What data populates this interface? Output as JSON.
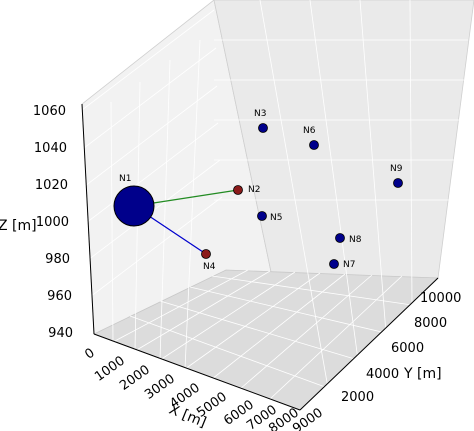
{
  "chart_data": {
    "type": "scatter3d",
    "xlabel": "X [m]",
    "ylabel": "Y [m]",
    "zlabel": "Z [m]",
    "xlim": [
      0,
      9000
    ],
    "ylim": [
      0,
      10000
    ],
    "zlim": [
      940,
      1060
    ],
    "x_ticks": [
      "0",
      "1000",
      "2000",
      "3000",
      "4000",
      "5000",
      "6000",
      "7000",
      "8000",
      "9000"
    ],
    "y_ticks": [
      "2000",
      "4000",
      "6000",
      "8000",
      "10000"
    ],
    "z_ticks": [
      "940",
      "960",
      "980",
      "1000",
      "1020",
      "1040",
      "1060"
    ],
    "grid": true,
    "nodes": [
      {
        "label": "N1",
        "color": "#00008b",
        "size": "large"
      },
      {
        "label": "N2",
        "color": "#8b1a1a",
        "size": "small"
      },
      {
        "label": "N3",
        "color": "#00008b",
        "size": "small"
      },
      {
        "label": "N4",
        "color": "#8b1a1a",
        "size": "small"
      },
      {
        "label": "N5",
        "color": "#00008b",
        "size": "small"
      },
      {
        "label": "N6",
        "color": "#00008b",
        "size": "small"
      },
      {
        "label": "N7",
        "color": "#00008b",
        "size": "small"
      },
      {
        "label": "N8",
        "color": "#00008b",
        "size": "small"
      },
      {
        "label": "N9",
        "color": "#00008b",
        "size": "small"
      }
    ],
    "edges": [
      {
        "from": "N1",
        "to": "N2",
        "color": "#228b22"
      },
      {
        "from": "N1",
        "to": "N4",
        "color": "#0000cd"
      }
    ]
  }
}
